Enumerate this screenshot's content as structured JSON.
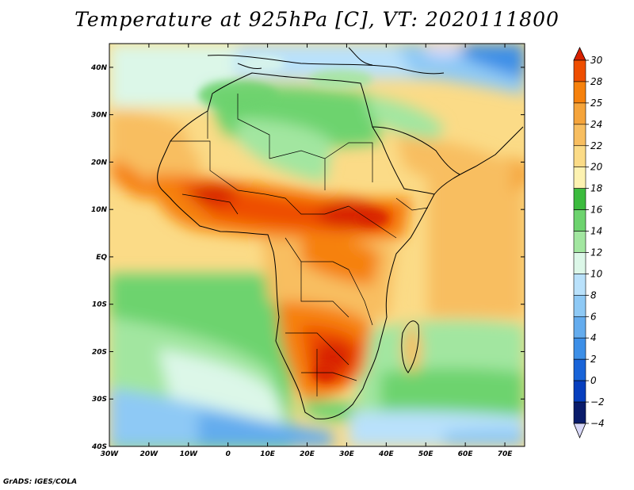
{
  "title": "Temperature at 925hPa [C], VT: 2020111800",
  "credit": "GrADS: IGES/COLA",
  "map": {
    "lon_range": [
      -30,
      75
    ],
    "lat_range": [
      -40,
      45
    ],
    "lon_ticks": [
      {
        "value": -30,
        "label": "30W"
      },
      {
        "value": -20,
        "label": "20W"
      },
      {
        "value": -10,
        "label": "10W"
      },
      {
        "value": 0,
        "label": "0"
      },
      {
        "value": 10,
        "label": "10E"
      },
      {
        "value": 20,
        "label": "20E"
      },
      {
        "value": 30,
        "label": "30E"
      },
      {
        "value": 40,
        "label": "40E"
      },
      {
        "value": 50,
        "label": "50E"
      },
      {
        "value": 60,
        "label": "60E"
      },
      {
        "value": 70,
        "label": "70E"
      }
    ],
    "lat_ticks": [
      {
        "value": 40,
        "label": "40N"
      },
      {
        "value": 30,
        "label": "30N"
      },
      {
        "value": 20,
        "label": "20N"
      },
      {
        "value": 10,
        "label": "10N"
      },
      {
        "value": 0,
        "label": "EQ"
      },
      {
        "value": -10,
        "label": "10S"
      },
      {
        "value": -20,
        "label": "20S"
      },
      {
        "value": -30,
        "label": "30S"
      },
      {
        "value": -40,
        "label": "40S"
      }
    ]
  },
  "colorbar": {
    "levels": [
      "30",
      "28",
      "25",
      "24",
      "22",
      "20",
      "18",
      "16",
      "14",
      "12",
      "10",
      "8",
      "6",
      "4",
      "2",
      "0",
      "−2",
      "−4"
    ],
    "colors": [
      "#d82100",
      "#ee4e00",
      "#f6810c",
      "#f5a43b",
      "#f8be60",
      "#fbdb87",
      "#fdf2b1",
      "#3cbb3e",
      "#6dd36e",
      "#a2e6a0",
      "#dcf7e8",
      "#b9e1fb",
      "#8ec9f5",
      "#64acee",
      "#3d8fe7",
      "#1964d8",
      "#073fbe",
      "#0a1c6b",
      "#d8d8f8"
    ]
  }
}
